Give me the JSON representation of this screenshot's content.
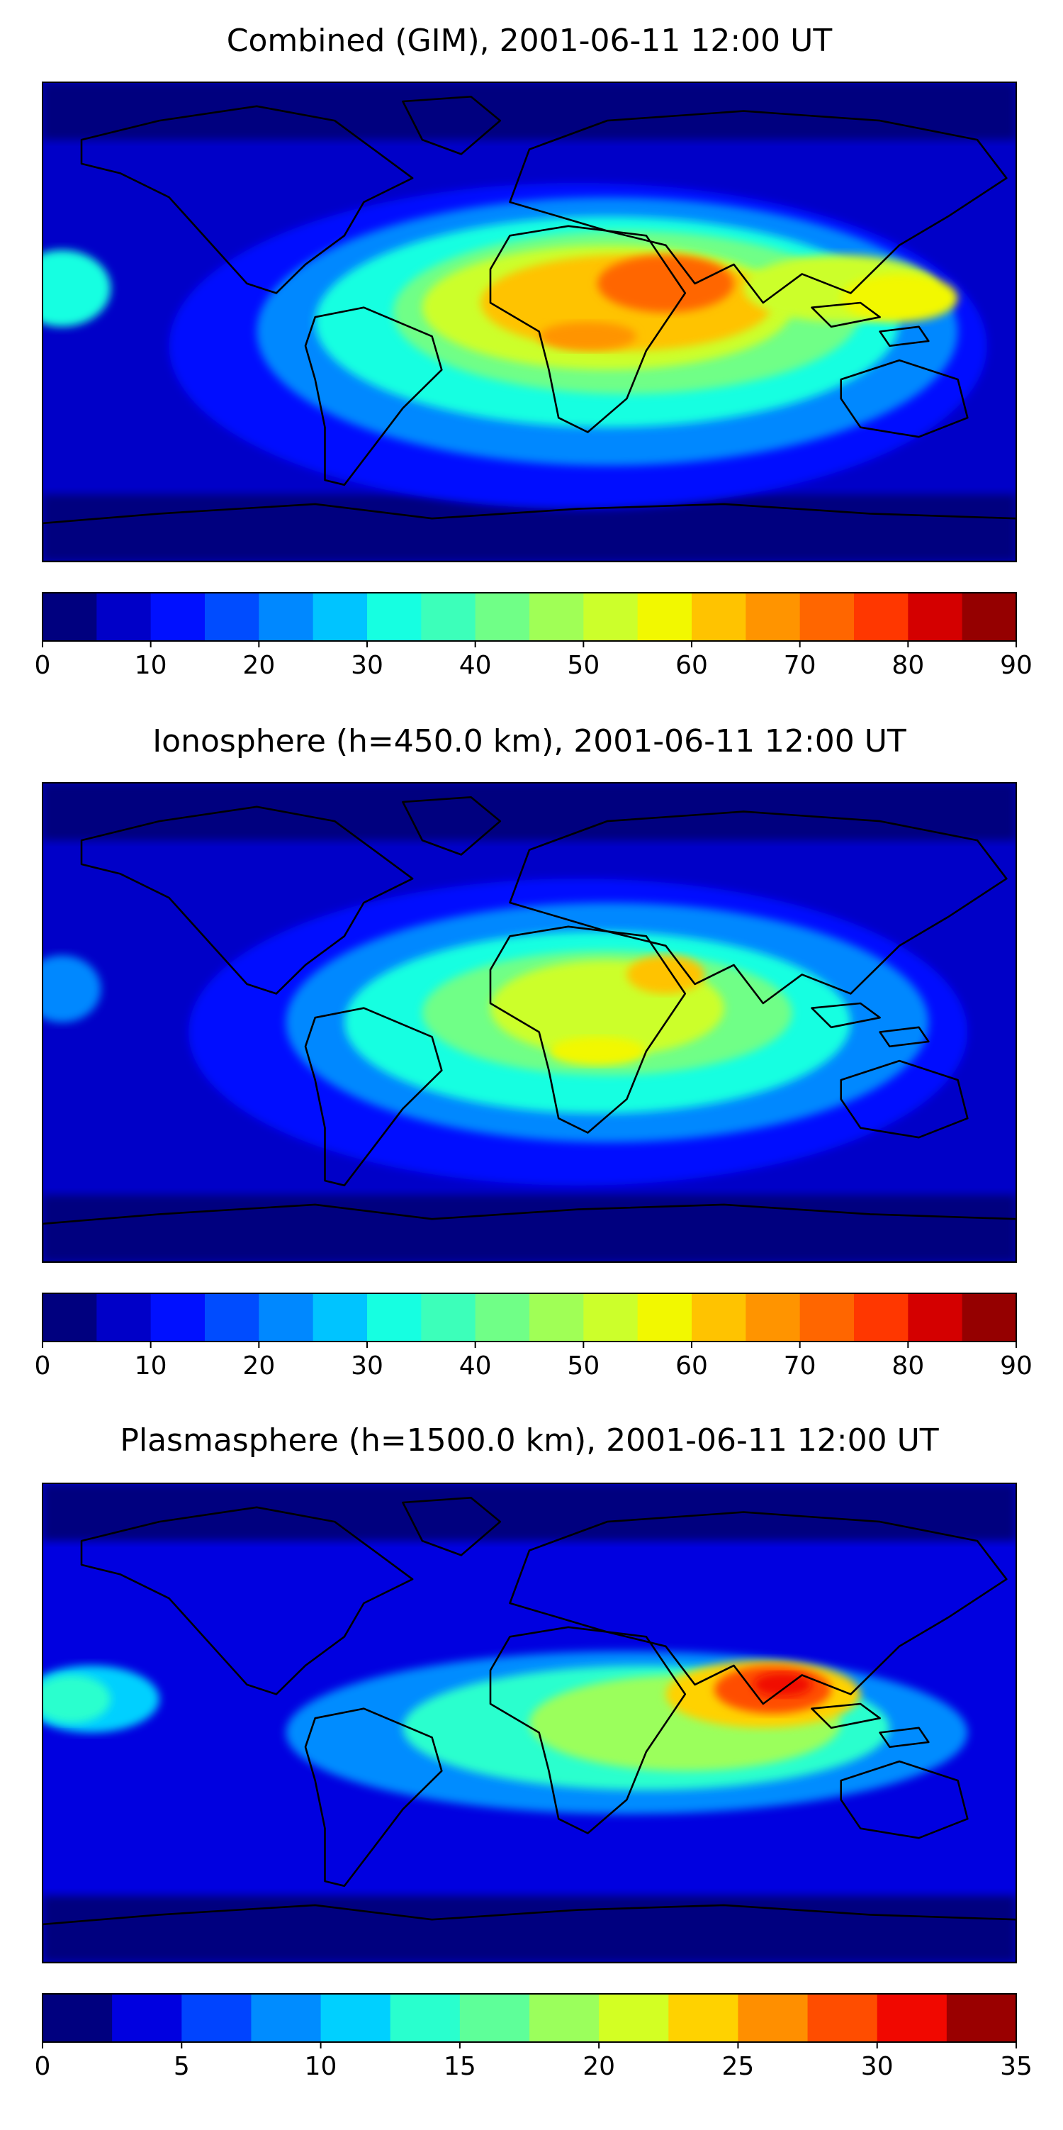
{
  "figure": {
    "panels": [
      {
        "title": "Combined (GIM), 2001-06-11 12:00 UT",
        "colorbar": {
          "ticks": [
            "0",
            "10",
            "20",
            "30",
            "40",
            "50",
            "60",
            "70",
            "80",
            "90"
          ]
        }
      },
      {
        "title": "Ionosphere  (h=450.0 km), 2001-06-11 12:00 UT",
        "colorbar": {
          "ticks": [
            "0",
            "10",
            "20",
            "30",
            "40",
            "50",
            "60",
            "70",
            "80",
            "90"
          ]
        }
      },
      {
        "title": "Plasmasphere (h=1500.0 km), 2001-06-11 12:00 UT",
        "colorbar": {
          "ticks": [
            "0",
            "5",
            "10",
            "15",
            "20",
            "25",
            "30",
            "35"
          ]
        }
      }
    ]
  },
  "chart_data": [
    {
      "type": "heatmap",
      "title": "Combined (GIM), 2001-06-11 12:00 UT",
      "projection": "equirectangular world map with coastlines",
      "colormap": "jet",
      "levels": [
        0,
        5,
        10,
        15,
        20,
        25,
        30,
        35,
        40,
        45,
        50,
        55,
        60,
        65,
        70,
        75,
        80,
        85,
        90
      ],
      "colorbar_ticks": [
        0,
        10,
        20,
        30,
        40,
        50,
        60,
        70,
        80,
        90
      ],
      "features": [
        {
          "region": "Arabian Peninsula / East Africa",
          "approx_value": 78
        },
        {
          "region": "Central Africa / equatorial Atlantic",
          "approx_value": 68
        },
        {
          "region": "South / Southeast Asia",
          "approx_value": 55
        },
        {
          "region": "Polar regions",
          "approx_value": 8
        }
      ]
    },
    {
      "type": "heatmap",
      "title": "Ionosphere  (h=450.0 km), 2001-06-11 12:00 UT",
      "projection": "equirectangular world map with coastlines",
      "colormap": "jet",
      "levels": [
        0,
        5,
        10,
        15,
        20,
        25,
        30,
        35,
        40,
        45,
        50,
        55,
        60,
        65,
        70,
        75,
        80,
        85,
        90
      ],
      "colorbar_ticks": [
        0,
        10,
        20,
        30,
        40,
        50,
        60,
        70,
        80,
        90
      ],
      "features": [
        {
          "region": "Arabian Peninsula",
          "approx_value": 62
        },
        {
          "region": "Central Africa",
          "approx_value": 55
        },
        {
          "region": "South / Southeast Asia",
          "approx_value": 38
        },
        {
          "region": "Polar regions",
          "approx_value": 8
        }
      ]
    },
    {
      "type": "heatmap",
      "title": "Plasmasphere (h=1500.0 km), 2001-06-11 12:00 UT",
      "projection": "equirectangular world map with coastlines",
      "colormap": "jet",
      "levels": [
        0,
        2.5,
        5,
        7.5,
        10,
        12.5,
        15,
        17.5,
        20,
        22.5,
        25,
        27.5,
        30,
        32.5,
        35
      ],
      "colorbar_ticks": [
        0,
        5,
        10,
        15,
        20,
        25,
        30,
        35
      ],
      "features": [
        {
          "region": "Southeast Asia (Indochina)",
          "approx_value": 31
        },
        {
          "region": "Equatorial Africa / Indian Ocean",
          "approx_value": 20
        },
        {
          "region": "Eastern Pacific",
          "approx_value": 14
        },
        {
          "region": "Polar regions",
          "approx_value": 2
        }
      ]
    }
  ]
}
